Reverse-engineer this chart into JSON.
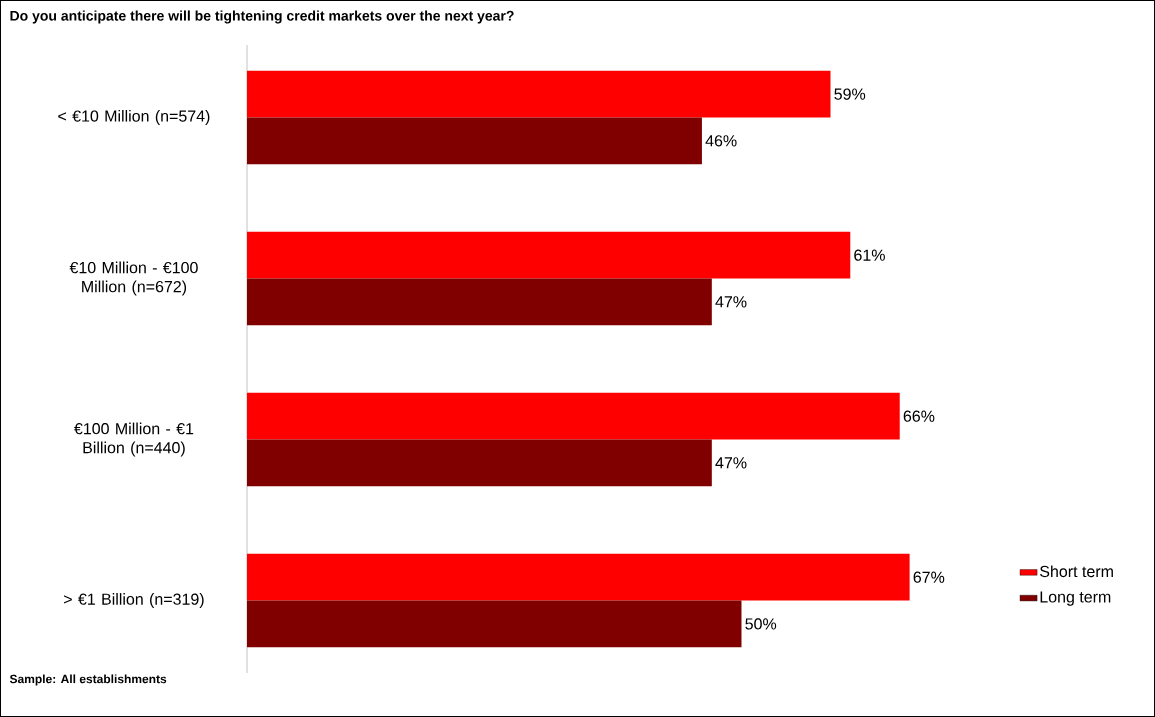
{
  "chart_data": {
    "type": "bar",
    "orientation": "horizontal",
    "title": "Do you anticipate there will be tightening credit markets over the next year?",
    "categories": [
      "< €10 Million (n=574)",
      "€10 Million - €100 Million (n=672)",
      "€100 Million - €1 Billion (n=440)",
      "> €1 Billion (n=319)"
    ],
    "series": [
      {
        "name": "Short term",
        "color": "#ff0000",
        "values": [
          59,
          61,
          66,
          67
        ],
        "value_labels": [
          "59%",
          "61%",
          "66%",
          "67%"
        ]
      },
      {
        "name": "Long term",
        "color": "#800000",
        "values": [
          46,
          47,
          47,
          50
        ],
        "value_labels": [
          "46%",
          "47%",
          "47%",
          "50%"
        ]
      }
    ],
    "legend": "right",
    "tick_labels": "y",
    "annotations": [
      "Sample: All establishments"
    ]
  }
}
